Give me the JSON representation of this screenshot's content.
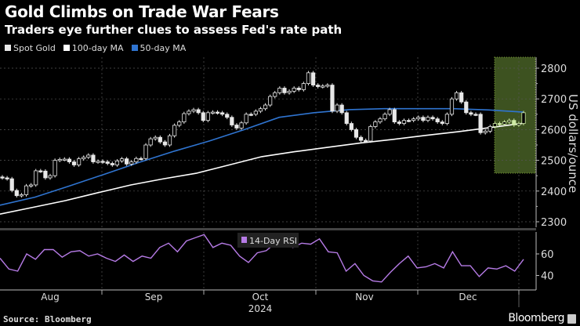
{
  "header": {
    "title": "Gold Climbs on Trade War Fears",
    "subtitle": "Traders eye further clues to assess Fed's rate path"
  },
  "footer": {
    "source": "Source: Bloomberg",
    "brand": "Bloomberg"
  },
  "colors": {
    "spot_gold": "#e8e8e8",
    "ma100": "#ffffff",
    "ma50": "#2f74d0",
    "rsi": "#b67be6",
    "highlight": "#3d5220",
    "highlight_border": "#7da035",
    "highlight_candle": "#cfeaa6"
  },
  "chart_data": [
    {
      "type": "candlestick",
      "legend": [
        {
          "name": "Spot Gold",
          "color": "#e8e8e8"
        },
        {
          "name": "100-day MA",
          "color": "#ffffff"
        },
        {
          "name": "50-day MA",
          "color": "#2f74d0"
        }
      ],
      "legend_position": "top-left",
      "ylabel": "US dollars/ounce",
      "ylim": [
        2280,
        2830
      ],
      "yticks": [
        "2800",
        "2700",
        "2600",
        "2500",
        "2400",
        "2300"
      ],
      "grid": true,
      "xticks": [
        "Aug",
        "Sep",
        "Oct",
        "Nov",
        "Dec"
      ],
      "xsublabel": "2024",
      "highlight": "last ~8 sessions (Dec) shaded green",
      "spot_gold_close": [
        2443,
        2440,
        2402,
        2385,
        2388,
        2417,
        2420,
        2466,
        2465,
        2443,
        2450,
        2500,
        2503,
        2504,
        2495,
        2485,
        2505,
        2510,
        2517,
        2495,
        2497,
        2495,
        2490,
        2485,
        2498,
        2505,
        2488,
        2495,
        2506,
        2506,
        2550,
        2570,
        2575,
        2560,
        2550,
        2580,
        2614,
        2625,
        2652,
        2660,
        2665,
        2655,
        2630,
        2655,
        2657,
        2655,
        2650,
        2640,
        2615,
        2605,
        2622,
        2650,
        2650,
        2660,
        2668,
        2680,
        2708,
        2720,
        2735,
        2720,
        2725,
        2735,
        2730,
        2750,
        2785,
        2745,
        2740,
        2742,
        2745,
        2660,
        2680,
        2655,
        2620,
        2600,
        2575,
        2565,
        2563,
        2610,
        2625,
        2635,
        2650,
        2665,
        2625,
        2620,
        2630,
        2630,
        2635,
        2640,
        2630,
        2640,
        2635,
        2625,
        2620,
        2650,
        2700,
        2720,
        2690,
        2655,
        2650,
        2650,
        2590,
        2595,
        2610,
        2620,
        2618,
        2625,
        2630,
        2615,
        2620,
        2655
      ],
      "ma50": [
        2354,
        2380,
        2417,
        2455,
        2494,
        2530,
        2563,
        2600,
        2640,
        2655,
        2665,
        2668,
        2668,
        2668,
        2664,
        2657
      ],
      "ma100": [
        2325,
        2347,
        2369,
        2395,
        2420,
        2440,
        2458,
        2485,
        2512,
        2528,
        2542,
        2556,
        2568,
        2581,
        2593,
        2607,
        2621
      ]
    },
    {
      "type": "line",
      "legend": [
        {
          "name": "14-Day RSI",
          "color": "#b67be6"
        }
      ],
      "legend_position": "top-center",
      "ylim": [
        28,
        82
      ],
      "yticks": [
        "60",
        "40"
      ],
      "rsi": [
        56,
        46,
        44,
        60,
        55,
        64,
        64,
        57,
        62,
        63,
        58,
        60,
        56,
        53,
        59,
        53,
        58,
        56,
        66,
        70,
        62,
        72,
        75,
        78,
        66,
        70,
        68,
        58,
        52,
        61,
        63,
        70,
        72,
        66,
        70,
        69,
        74,
        62,
        61,
        44,
        51,
        40,
        35,
        34,
        43,
        51,
        58,
        47,
        48,
        51,
        47,
        62,
        49,
        49,
        39,
        47,
        46,
        49,
        44,
        55
      ]
    }
  ]
}
